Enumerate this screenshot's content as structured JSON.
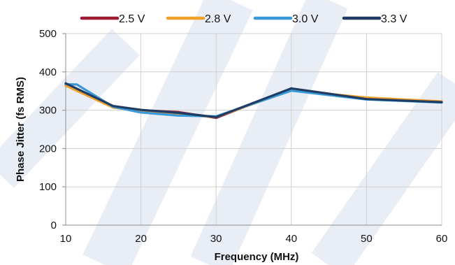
{
  "chart_data": {
    "type": "line",
    "xlabel": "Frequency (MHz)",
    "ylabel": "Phase Jitter (fs RMS)",
    "xlim": [
      10,
      60
    ],
    "ylim": [
      0,
      500
    ],
    "xticks": [
      10,
      20,
      30,
      40,
      50,
      60
    ],
    "yticks": [
      0,
      100,
      200,
      300,
      400,
      500
    ],
    "grid": true,
    "legend_position": "top",
    "series": [
      {
        "name": "2.5 V",
        "color": "#9e1b32",
        "points": [
          [
            10,
            368
          ],
          [
            16.3,
            308
          ],
          [
            20,
            300
          ],
          [
            25,
            295
          ],
          [
            30,
            280
          ],
          [
            40,
            356
          ],
          [
            50,
            330
          ],
          [
            60,
            322
          ]
        ]
      },
      {
        "name": "2.8 V",
        "color": "#f2a02c",
        "points": [
          [
            10,
            364
          ],
          [
            16.3,
            307
          ],
          [
            20,
            297
          ],
          [
            25,
            289
          ],
          [
            30,
            282
          ],
          [
            40,
            352
          ],
          [
            50,
            333
          ],
          [
            60,
            323
          ]
        ]
      },
      {
        "name": "3.0 V",
        "color": "#3a9ad9",
        "points": [
          [
            10,
            368
          ],
          [
            11.5,
            367
          ],
          [
            16.3,
            309
          ],
          [
            20,
            294
          ],
          [
            25,
            286
          ],
          [
            30,
            284
          ],
          [
            40,
            351
          ],
          [
            50,
            328
          ],
          [
            60,
            320
          ]
        ]
      },
      {
        "name": "3.3 V",
        "color": "#1f3d64",
        "points": [
          [
            10,
            370
          ],
          [
            16.3,
            311
          ],
          [
            20,
            301
          ],
          [
            25,
            293
          ],
          [
            30,
            282
          ],
          [
            40,
            357
          ],
          [
            50,
            329
          ],
          [
            60,
            321
          ]
        ]
      }
    ]
  }
}
